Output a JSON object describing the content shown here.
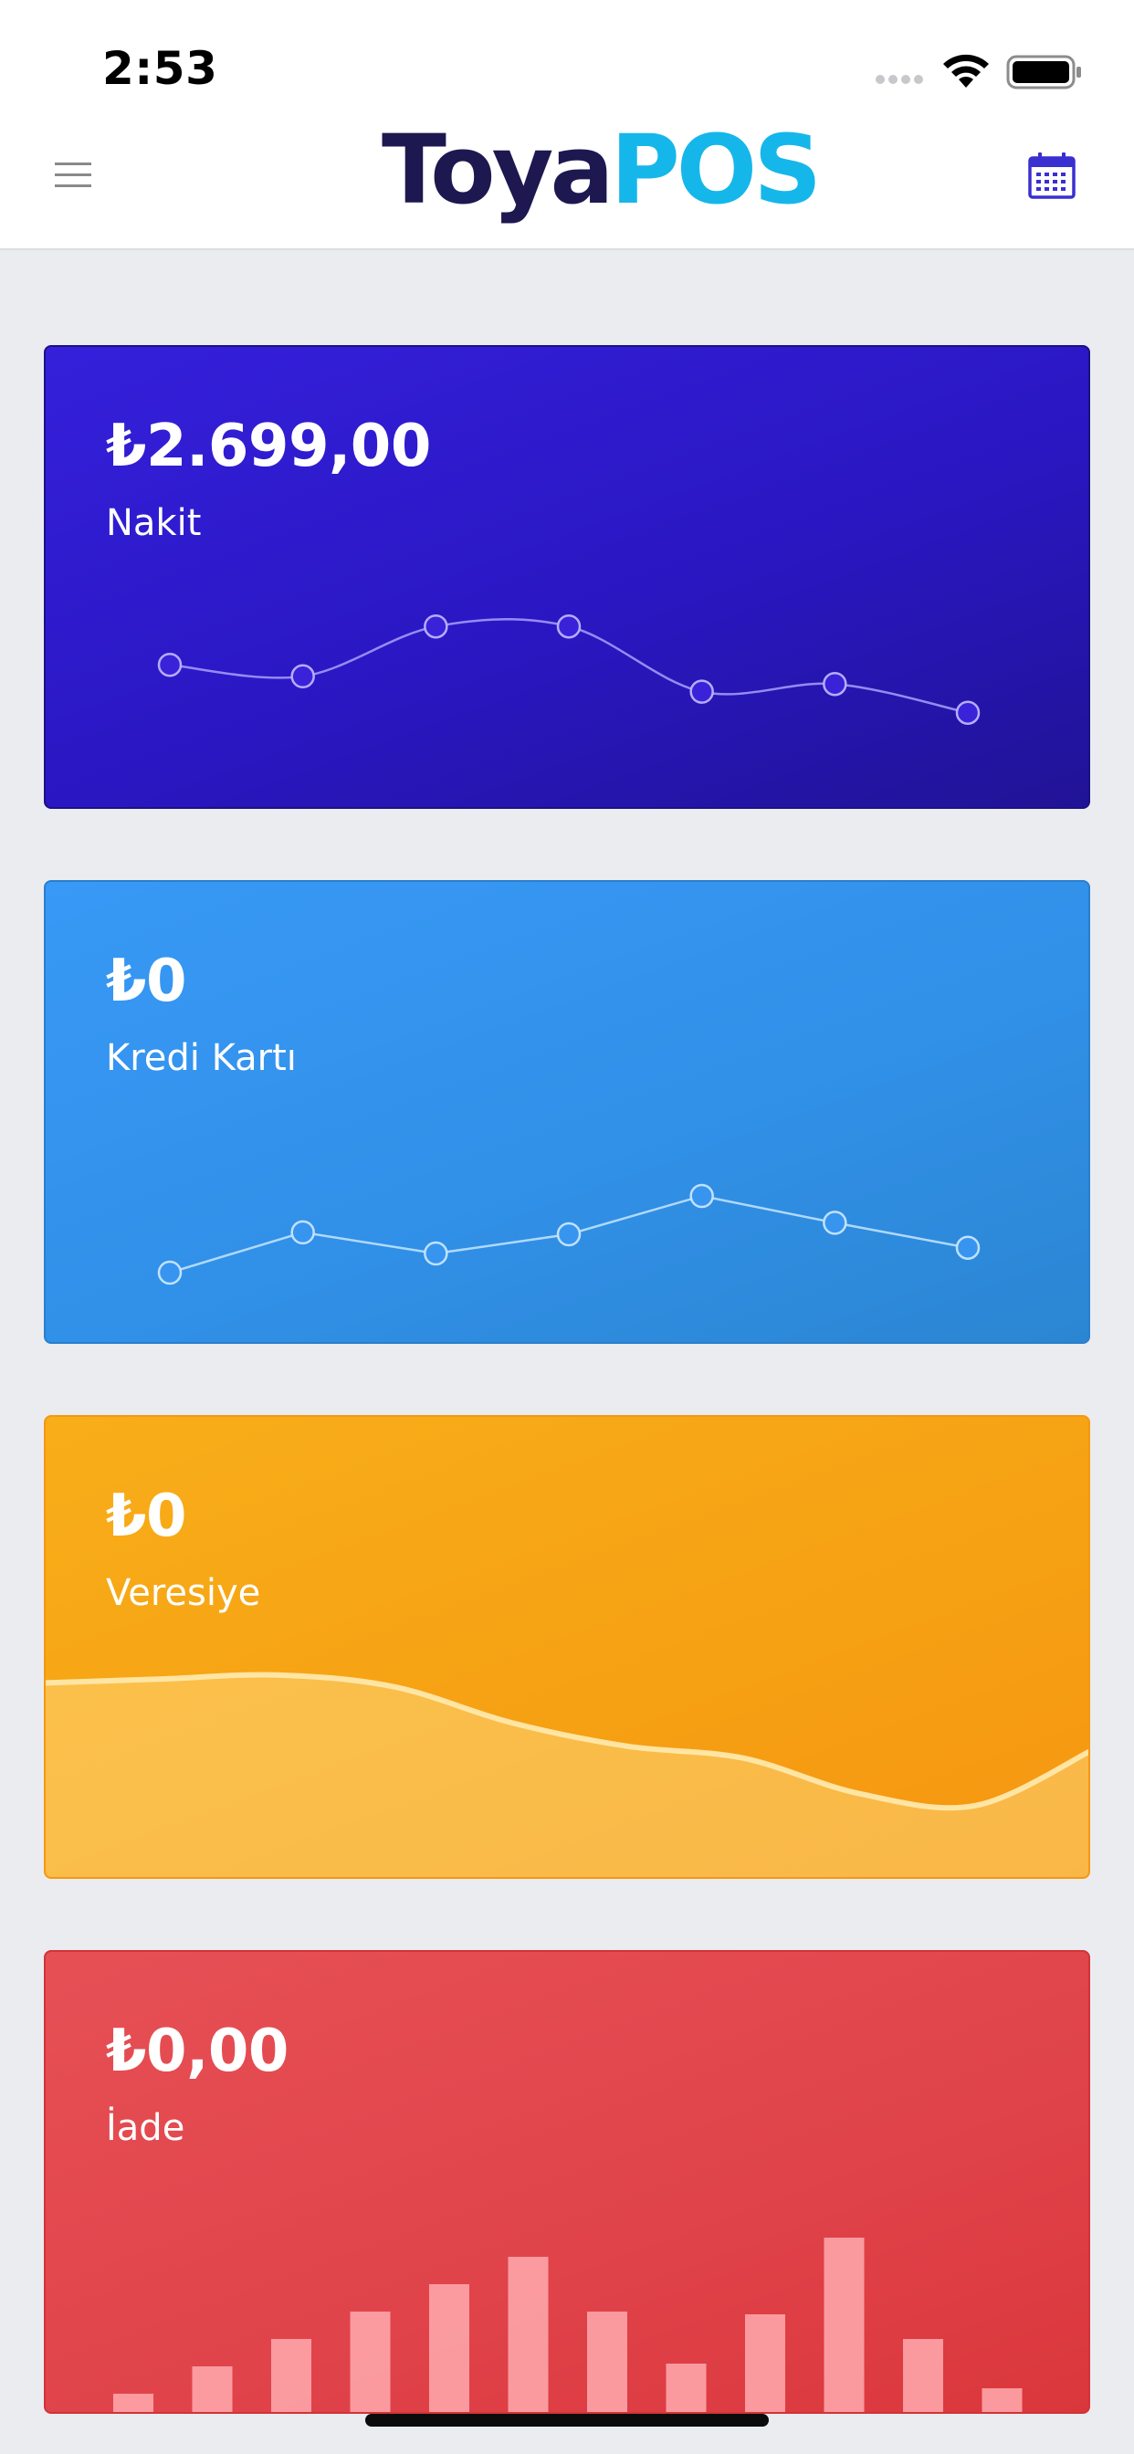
{
  "status_bar": {
    "time": "2:53"
  },
  "header": {
    "logo_part1": "Toya",
    "logo_part2": "POS",
    "menu_icon": "hamburger-menu-icon",
    "calendar_icon": "calendar-icon",
    "accent_color": "#3a2fd0"
  },
  "cards": [
    {
      "id": "nakit",
      "amount": "₺2.699,00",
      "label": "Nakit"
    },
    {
      "id": "kredi",
      "amount": "₺0",
      "label": "Kredi Kartı"
    },
    {
      "id": "veresiye",
      "amount": "₺0",
      "label": "Veresiye"
    },
    {
      "id": "iade",
      "amount": "₺0,00",
      "label": "İade"
    }
  ],
  "chart_data": [
    {
      "type": "line",
      "series": [
        {
          "values": [
            58,
            52,
            78,
            78,
            44,
            48,
            33
          ]
        }
      ]
    },
    {
      "type": "line",
      "series": [
        {
          "values": [
            20,
            41,
            30,
            40,
            60,
            46,
            33
          ]
        }
      ]
    },
    {
      "type": "area",
      "series": [
        {
          "values": [
            50,
            51,
            52,
            49,
            40,
            34,
            31,
            22,
            19,
            33
          ]
        }
      ]
    },
    {
      "type": "bar",
      "series": [
        {
          "values": [
            8,
            18,
            28,
            38,
            48,
            58,
            38,
            19,
            37,
            65,
            28,
            10
          ]
        }
      ]
    }
  ]
}
